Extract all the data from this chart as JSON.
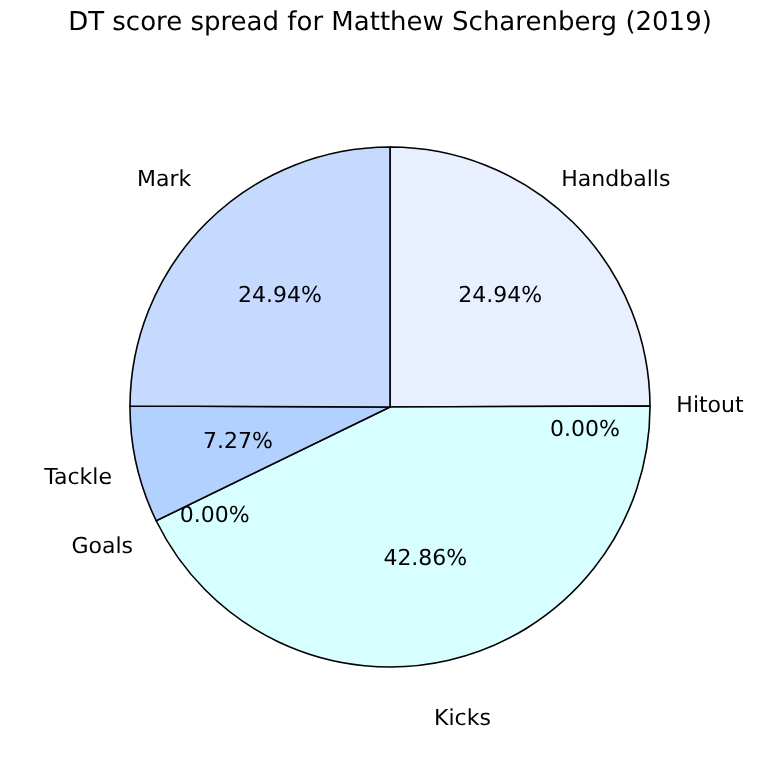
{
  "chart_data": {
    "type": "pie",
    "title": "DT score spread for Matthew Scharenberg (2019)",
    "categories": [
      "Handballs",
      "Hitout",
      "Kicks",
      "Goals",
      "Tackle",
      "Mark"
    ],
    "values": [
      24.94,
      0.0,
      42.86,
      0.0,
      7.27,
      24.94
    ],
    "value_labels": [
      "24.94%",
      "0.00%",
      "42.86%",
      "0.00%",
      "7.27%",
      "24.94%"
    ],
    "colors": [
      "#e8f0ff",
      "#e8f0ff",
      "#d8ffff",
      "#d0e4ff",
      "#b3d1ff",
      "#c6d9ff"
    ],
    "legend": false
  }
}
